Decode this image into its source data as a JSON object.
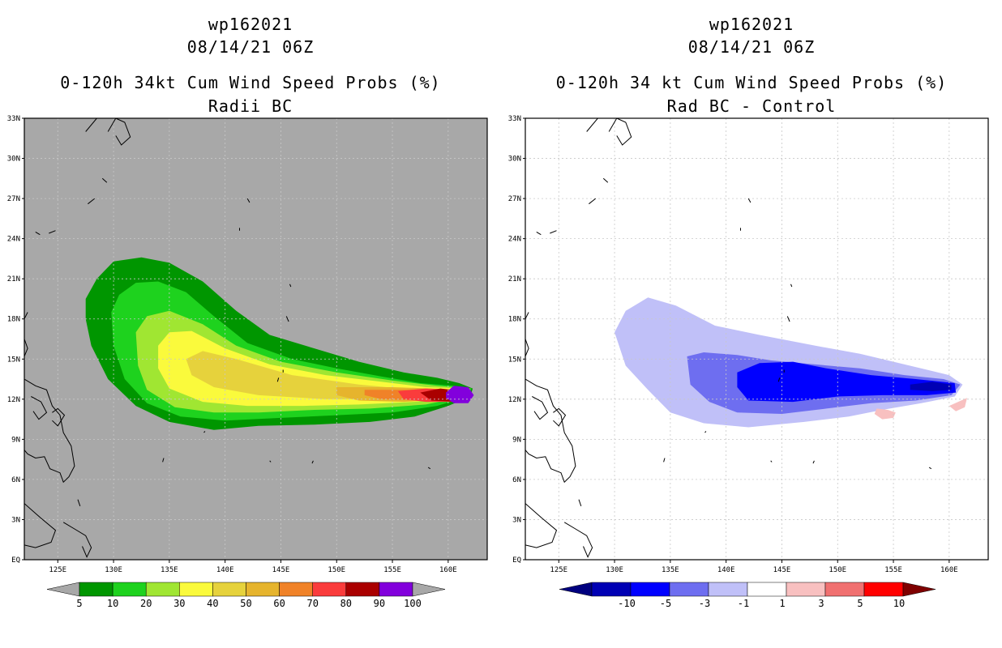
{
  "chart_data": [
    {
      "type": "heatmap",
      "storm_id": "wp162021",
      "datetime": "08/14/21 06Z",
      "title": "0-120h 34kt Cum Wind Speed Probs (%)",
      "subtitle": "Radii BC",
      "background_color": "#a8a8a8",
      "x_ticks": [
        "125E",
        "130E",
        "135E",
        "140E",
        "145E",
        "150E",
        "155E",
        "160E"
      ],
      "x_tick_values": [
        125,
        130,
        135,
        140,
        145,
        150,
        155,
        160
      ],
      "y_ticks": [
        "EQ",
        "3N",
        "6N",
        "9N",
        "12N",
        "15N",
        "18N",
        "21N",
        "24N",
        "27N",
        "30N",
        "33N"
      ],
      "y_tick_values": [
        0,
        3,
        6,
        9,
        12,
        15,
        18,
        21,
        24,
        27,
        30,
        33
      ],
      "xlim": [
        122,
        163.5
      ],
      "ylim": [
        0,
        33
      ],
      "grid": true,
      "colorbar": {
        "labels": [
          "5",
          "10",
          "20",
          "30",
          "40",
          "50",
          "60",
          "70",
          "80",
          "90",
          "100"
        ],
        "colors": [
          "#009600",
          "#1ed21e",
          "#a0e632",
          "#fafa3c",
          "#e6d23c",
          "#e6b42d",
          "#f08228",
          "#fa3c3c",
          "#aa0000",
          "#8200dc"
        ],
        "under_color": "#a8a8a8",
        "over_color": "#a8a8a8"
      },
      "contours": [
        {
          "level": 5,
          "color": "#009600",
          "points": [
            [
              127.5,
              19.5
            ],
            [
              128.5,
              21
            ],
            [
              130,
              22.3
            ],
            [
              132.5,
              22.6
            ],
            [
              135,
              22.2
            ],
            [
              138,
              20.8
            ],
            [
              141,
              18.6
            ],
            [
              144,
              16.8
            ],
            [
              148,
              15.8
            ],
            [
              152,
              14.8
            ],
            [
              156,
              14
            ],
            [
              159,
              13.6
            ],
            [
              161,
              13.2
            ],
            [
              162.2,
              12.8
            ],
            [
              162,
              12.2
            ],
            [
              160,
              11.5
            ],
            [
              157,
              10.7
            ],
            [
              153,
              10.3
            ],
            [
              148,
              10.1
            ],
            [
              143,
              10
            ],
            [
              139,
              9.7
            ],
            [
              135,
              10.3
            ],
            [
              132,
              11.5
            ],
            [
              129.5,
              13.5
            ],
            [
              128,
              16
            ],
            [
              127.5,
              18
            ]
          ]
        },
        {
          "level": 10,
          "color": "#1ed21e",
          "points": [
            [
              129.8,
              18.5
            ],
            [
              130.5,
              19.8
            ],
            [
              132,
              20.7
            ],
            [
              134,
              20.8
            ],
            [
              136.5,
              20
            ],
            [
              139,
              18.2
            ],
            [
              142,
              16.2
            ],
            [
              146,
              15
            ],
            [
              150,
              14.3
            ],
            [
              154,
              13.7
            ],
            [
              157.5,
              13.2
            ],
            [
              160.5,
              13
            ],
            [
              162.1,
              12.8
            ],
            [
              161.8,
              12.2
            ],
            [
              159,
              11.5
            ],
            [
              155,
              11
            ],
            [
              150,
              10.8
            ],
            [
              145,
              10.6
            ],
            [
              140,
              10.4
            ],
            [
              136,
              10.7
            ],
            [
              133,
              11.7
            ],
            [
              131,
              13.5
            ],
            [
              130,
              16
            ]
          ]
        },
        {
          "level": 20,
          "color": "#a0e632",
          "points": [
            [
              132,
              17
            ],
            [
              133,
              18.2
            ],
            [
              135,
              18.6
            ],
            [
              138,
              17.6
            ],
            [
              141,
              16
            ],
            [
              145,
              14.8
            ],
            [
              150,
              14
            ],
            [
              155,
              13.4
            ],
            [
              159,
              13
            ],
            [
              162,
              12.8
            ],
            [
              161.5,
              12.2
            ],
            [
              158,
              11.6
            ],
            [
              153,
              11.3
            ],
            [
              148,
              11.2
            ],
            [
              143,
              11
            ],
            [
              139,
              11
            ],
            [
              135.5,
              11.4
            ],
            [
              133,
              12.7
            ],
            [
              132.2,
              14.5
            ]
          ]
        },
        {
          "level": 30,
          "color": "#fafa3c",
          "points": [
            [
              134,
              16
            ],
            [
              135,
              17
            ],
            [
              137,
              17.1
            ],
            [
              140,
              15.8
            ],
            [
              144,
              14.6
            ],
            [
              149,
              13.8
            ],
            [
              154,
              13.3
            ],
            [
              158,
              12.9
            ],
            [
              161.8,
              12.8
            ],
            [
              161.2,
              12.2
            ],
            [
              157,
              11.8
            ],
            [
              152,
              11.6
            ],
            [
              147,
              11.5
            ],
            [
              142,
              11.5
            ],
            [
              138,
              11.8
            ],
            [
              135,
              12.8
            ],
            [
              134,
              14.3
            ]
          ]
        },
        {
          "level": 40,
          "color": "#e6d23c",
          "points": [
            [
              136.5,
              15
            ],
            [
              138,
              15.6
            ],
            [
              141,
              15
            ],
            [
              146,
              13.8
            ],
            [
              152,
              13.1
            ],
            [
              157,
              12.7
            ],
            [
              161,
              12.6
            ],
            [
              160,
              12.2
            ],
            [
              155,
              12
            ],
            [
              149,
              12
            ],
            [
              143,
              12.3
            ],
            [
              139,
              12.9
            ],
            [
              137,
              13.8
            ]
          ]
        },
        {
          "level": 50,
          "color": "#e6b42d",
          "points": [
            [
              150,
              12.9
            ],
            [
              155,
              12.9
            ],
            [
              158.5,
              12.8
            ],
            [
              161,
              12.7
            ],
            [
              160.5,
              12
            ],
            [
              156,
              11.8
            ],
            [
              152,
              11.9
            ],
            [
              150,
              12.3
            ]
          ]
        },
        {
          "level": 60,
          "color": "#f08228",
          "points": [
            [
              152.5,
              12.7
            ],
            [
              156,
              12.7
            ],
            [
              159,
              12.7
            ],
            [
              161,
              12.6
            ],
            [
              160.3,
              11.9
            ],
            [
              157,
              11.9
            ],
            [
              154,
              12
            ],
            [
              152.5,
              12.3
            ]
          ]
        },
        {
          "level": 70,
          "color": "#fa3c3c",
          "points": [
            [
              155.5,
              12.6
            ],
            [
              158,
              12.8
            ],
            [
              160.5,
              12.7
            ],
            [
              161.5,
              12.4
            ],
            [
              160.8,
              11.8
            ],
            [
              158,
              11.8
            ],
            [
              156,
              12
            ]
          ]
        },
        {
          "level": 80,
          "color": "#aa0000",
          "points": [
            [
              157.5,
              12.5
            ],
            [
              159.3,
              12.8
            ],
            [
              161.3,
              12.6
            ],
            [
              161.6,
              12.2
            ],
            [
              160.7,
              11.8
            ],
            [
              158.5,
              11.9
            ]
          ]
        },
        {
          "level": 90,
          "color": "#8200dc",
          "points": [
            [
              159.8,
              12.5
            ],
            [
              160.5,
              13
            ],
            [
              161.8,
              12.9
            ],
            [
              162.3,
              12.3
            ],
            [
              161.8,
              11.7
            ],
            [
              160.5,
              11.7
            ],
            [
              159.8,
              12.1
            ]
          ]
        }
      ]
    },
    {
      "type": "heatmap",
      "storm_id": "wp162021",
      "datetime": "08/14/21 06Z",
      "title": "0-120h 34 kt Cum Wind Speed Probs (%)",
      "subtitle": "Rad BC - Control",
      "background_color": "#ffffff",
      "x_ticks": [
        "125E",
        "130E",
        "135E",
        "140E",
        "145E",
        "150E",
        "155E",
        "160E"
      ],
      "x_tick_values": [
        125,
        130,
        135,
        140,
        145,
        150,
        155,
        160
      ],
      "y_ticks": [
        "EQ",
        "3N",
        "6N",
        "9N",
        "12N",
        "15N",
        "18N",
        "21N",
        "24N",
        "27N",
        "30N",
        "33N"
      ],
      "y_tick_values": [
        0,
        3,
        6,
        9,
        12,
        15,
        18,
        21,
        24,
        27,
        30,
        33
      ],
      "xlim": [
        122,
        163.5
      ],
      "ylim": [
        0,
        33
      ],
      "grid": true,
      "colorbar": {
        "labels": [
          "-10",
          "-5",
          "-3",
          "-1",
          "1",
          "3",
          "5",
          "10"
        ],
        "colors": [
          "#0000b4",
          "#0000ff",
          "#6e6ef0",
          "#c0c0f8",
          "#ffffff",
          "#f8c0c0",
          "#f07070",
          "#ff0000"
        ],
        "under_color": "#00007f",
        "over_color": "#7f0000"
      },
      "contours": [
        {
          "level": -1,
          "color": "#c0c0f8",
          "points": [
            [
              131,
              18.6
            ],
            [
              133,
              19.6
            ],
            [
              135.5,
              19
            ],
            [
              139,
              17.5
            ],
            [
              143,
              16.8
            ],
            [
              148,
              16
            ],
            [
              152,
              15.4
            ],
            [
              156,
              14.6
            ],
            [
              160,
              13.8
            ],
            [
              161.2,
              13.1
            ],
            [
              160.5,
              12.2
            ],
            [
              157.5,
              11.7
            ],
            [
              154,
              11.2
            ],
            [
              151,
              10.7
            ],
            [
              147,
              10.3
            ],
            [
              142,
              9.9
            ],
            [
              138,
              10.2
            ],
            [
              135,
              11
            ],
            [
              133,
              12.7
            ],
            [
              131,
              14.5
            ],
            [
              130,
              17
            ]
          ]
        },
        {
          "level": -3,
          "color": "#6e6ef0",
          "points": [
            [
              136.5,
              15.2
            ],
            [
              138,
              15.5
            ],
            [
              141,
              15.3
            ],
            [
              144,
              14.9
            ],
            [
              148,
              14.6
            ],
            [
              152,
              14.3
            ],
            [
              156,
              13.8
            ],
            [
              159.5,
              13.5
            ],
            [
              161,
              13.1
            ],
            [
              160.2,
              12.3
            ],
            [
              157,
              11.9
            ],
            [
              153,
              11.7
            ],
            [
              149,
              11.3
            ],
            [
              145,
              10.9
            ],
            [
              141,
              11
            ],
            [
              138.5,
              11.8
            ],
            [
              136.8,
              13.1
            ]
          ]
        },
        {
          "level": -5,
          "color": "#0000ff",
          "points": [
            [
              141,
              14
            ],
            [
              143,
              14.7
            ],
            [
              146,
              14.8
            ],
            [
              149,
              14.3
            ],
            [
              153,
              13.8
            ],
            [
              157,
              13.5
            ],
            [
              160.5,
              13.2
            ],
            [
              160.6,
              12.5
            ],
            [
              158,
              12.3
            ],
            [
              154,
              12.3
            ],
            [
              150,
              12.2
            ],
            [
              146,
              11.8
            ],
            [
              142,
              11.9
            ],
            [
              141,
              12.9
            ]
          ]
        },
        {
          "level": -10,
          "color": "#0000b4",
          "points": [
            [
              156.5,
              13.1
            ],
            [
              158.5,
              13.3
            ],
            [
              160.2,
              13.1
            ],
            [
              160.2,
              12.7
            ],
            [
              158.5,
              12.6
            ],
            [
              156.5,
              12.7
            ]
          ]
        },
        {
          "level": 3,
          "color": "#f8c0c0",
          "points": [
            [
              153.5,
              11.3
            ],
            [
              154.5,
              11.2
            ],
            [
              155.2,
              11
            ],
            [
              155,
              10.6
            ],
            [
              154,
              10.5
            ],
            [
              153.3,
              10.9
            ]
          ]
        },
        {
          "level": 3,
          "color": "#f8c0c0",
          "points": [
            [
              160,
              11.5
            ],
            [
              160.8,
              11.8
            ],
            [
              161.6,
              12.1
            ],
            [
              161.4,
              11.4
            ],
            [
              160.6,
              11.1
            ]
          ]
        }
      ]
    }
  ]
}
